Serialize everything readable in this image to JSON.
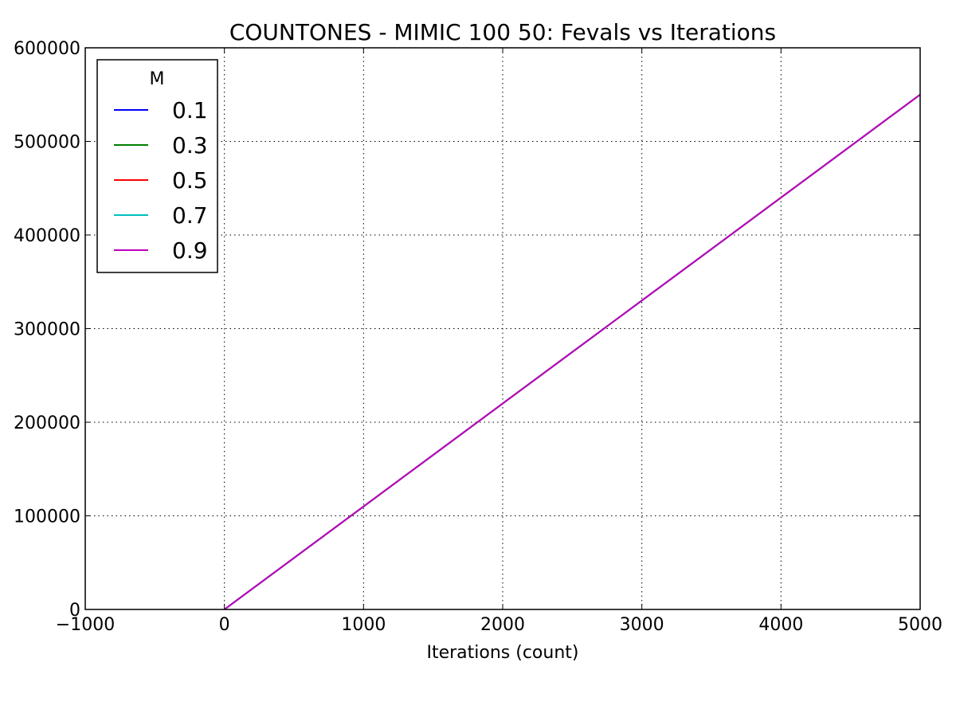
{
  "chart_data": {
    "type": "line",
    "title": "COUNTONES - MIMIC 100 50: Fevals vs Iterations",
    "xlabel": "Iterations (count)",
    "ylabel": "",
    "xlim": [
      -1000,
      5000
    ],
    "ylim": [
      0,
      600000
    ],
    "xticks": [
      -1000,
      0,
      1000,
      2000,
      3000,
      4000,
      5000
    ],
    "xtick_labels": [
      "−1000",
      "0",
      "1000",
      "2000",
      "3000",
      "4000",
      "5000"
    ],
    "yticks": [
      0,
      100000,
      200000,
      300000,
      400000,
      500000,
      600000
    ],
    "ytick_labels": [
      "0",
      "100000",
      "200000",
      "300000",
      "400000",
      "500000",
      "600000"
    ],
    "grid": true,
    "grid_style": "dotted",
    "legend": {
      "title": "M",
      "position": "top-left"
    },
    "series": [
      {
        "name": "0.1",
        "color": "#0000ff",
        "x": [
          0,
          5000
        ],
        "y": [
          0,
          550000
        ]
      },
      {
        "name": "0.3",
        "color": "#008000",
        "x": [
          0,
          5000
        ],
        "y": [
          0,
          550000
        ]
      },
      {
        "name": "0.5",
        "color": "#ff0000",
        "x": [
          0,
          5000
        ],
        "y": [
          0,
          550000
        ]
      },
      {
        "name": "0.7",
        "color": "#00bfbf",
        "x": [
          0,
          5000
        ],
        "y": [
          0,
          550000
        ]
      },
      {
        "name": "0.9",
        "color": "#bf00bf",
        "x": [
          0,
          5000
        ],
        "y": [
          0,
          550000
        ]
      }
    ]
  }
}
